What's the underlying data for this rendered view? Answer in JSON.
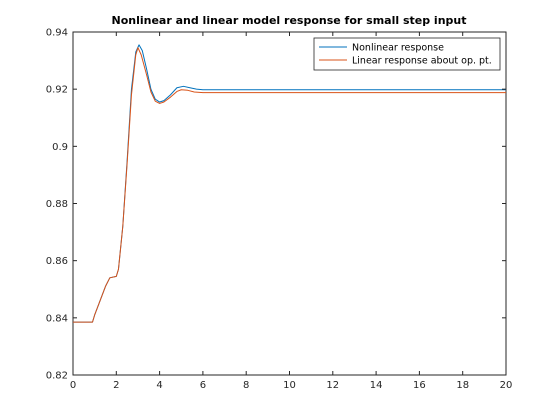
{
  "chart_data": {
    "type": "line",
    "title": "Nonlinear and linear model response for small step input",
    "xlabel": "",
    "ylabel": "",
    "xlim": [
      0,
      20
    ],
    "ylim": [
      0.82,
      0.94
    ],
    "x_ticks": [
      0,
      2,
      4,
      6,
      8,
      10,
      12,
      14,
      16,
      18,
      20
    ],
    "y_ticks": [
      0.82,
      0.84,
      0.86,
      0.88,
      0.9,
      0.92,
      0.94
    ],
    "x_tick_labels": [
      "0",
      "2",
      "4",
      "6",
      "8",
      "10",
      "12",
      "14",
      "16",
      "18",
      "20"
    ],
    "y_tick_labels": [
      "0.82",
      "0.84",
      "0.86",
      "0.88",
      "0.9",
      "0.92",
      "0.94"
    ],
    "grid": false,
    "legend_position": "top-right",
    "series": [
      {
        "name": "Nonlinear response",
        "color": "#0072BD",
        "points": [
          [
            0,
            0.8385
          ],
          [
            0.9,
            0.8385
          ],
          [
            1.0,
            0.841
          ],
          [
            1.2,
            0.845
          ],
          [
            1.5,
            0.851
          ],
          [
            1.7,
            0.854
          ],
          [
            2.0,
            0.8545
          ],
          [
            2.1,
            0.857
          ],
          [
            2.3,
            0.872
          ],
          [
            2.5,
            0.895
          ],
          [
            2.7,
            0.92
          ],
          [
            2.9,
            0.933
          ],
          [
            3.05,
            0.9355
          ],
          [
            3.2,
            0.9335
          ],
          [
            3.4,
            0.927
          ],
          [
            3.6,
            0.92
          ],
          [
            3.8,
            0.9165
          ],
          [
            4.0,
            0.9155
          ],
          [
            4.2,
            0.916
          ],
          [
            4.5,
            0.918
          ],
          [
            4.8,
            0.9205
          ],
          [
            5.1,
            0.921
          ],
          [
            5.4,
            0.9205
          ],
          [
            5.7,
            0.92
          ],
          [
            6.0,
            0.9198
          ],
          [
            20,
            0.9198
          ]
        ]
      },
      {
        "name": "Linear response about op. pt.",
        "color": "#D95319",
        "points": [
          [
            0,
            0.8385
          ],
          [
            0.9,
            0.8385
          ],
          [
            1.0,
            0.841
          ],
          [
            1.2,
            0.845
          ],
          [
            1.5,
            0.851
          ],
          [
            1.7,
            0.854
          ],
          [
            2.0,
            0.8545
          ],
          [
            2.1,
            0.857
          ],
          [
            2.3,
            0.872
          ],
          [
            2.5,
            0.894
          ],
          [
            2.7,
            0.918
          ],
          [
            2.9,
            0.932
          ],
          [
            3.0,
            0.9345
          ],
          [
            3.15,
            0.932
          ],
          [
            3.4,
            0.925
          ],
          [
            3.6,
            0.919
          ],
          [
            3.8,
            0.9158
          ],
          [
            4.0,
            0.915
          ],
          [
            4.2,
            0.9155
          ],
          [
            4.5,
            0.9172
          ],
          [
            4.8,
            0.9192
          ],
          [
            5.0,
            0.9198
          ],
          [
            5.3,
            0.9196
          ],
          [
            5.6,
            0.919
          ],
          [
            6.0,
            0.9188
          ],
          [
            20,
            0.9188
          ]
        ]
      }
    ]
  }
}
